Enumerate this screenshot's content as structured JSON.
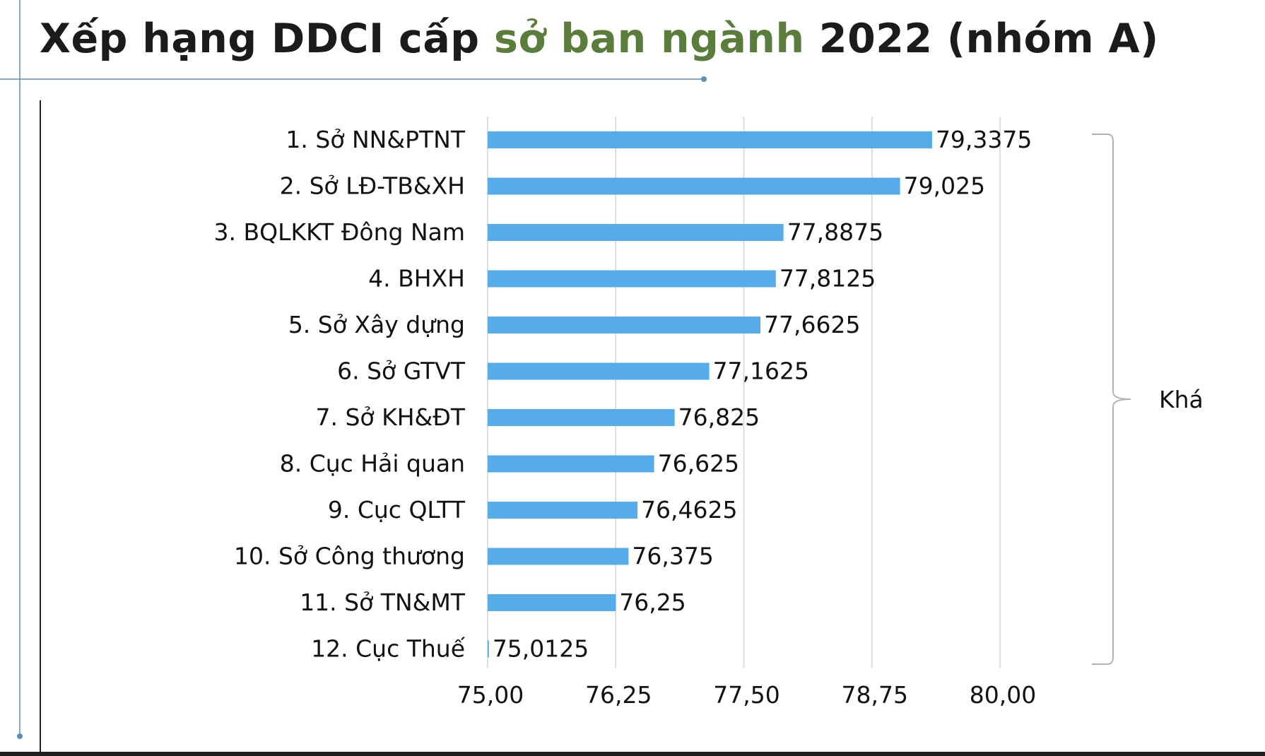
{
  "header": {
    "title_part1": "Xếp hạng DDCI cấp ",
    "title_highlight": "sở ban ngành",
    "title_part2": " 2022 (nhóm A)"
  },
  "colors": {
    "bar": "#55ace8",
    "title_highlight": "#5b7d3c",
    "decor_line": "#5b8fbf",
    "grid": "#d4d4d4",
    "bracket": "#b4b4b4"
  },
  "chart_data": {
    "type": "bar",
    "orientation": "horizontal",
    "title": "Xếp hạng DDCI cấp sở ban ngành 2022 (nhóm A)",
    "categories": [
      "1. Sở NN&PTNT",
      "2. Sở LĐ-TB&XH",
      "3. BQLKKT Đông Nam",
      "4. BHXH",
      "5. Sở Xây dựng",
      "6. Sở GTVT",
      "7. Sở KH&ĐT",
      "8. Cục Hải quan",
      "9. Cục QLTT",
      "10. Sở Công thương",
      "11. Sở TN&MT",
      "12. Cục Thuế"
    ],
    "values": [
      79.3375,
      79.025,
      77.8875,
      77.8125,
      77.6625,
      77.1625,
      76.825,
      76.625,
      76.4625,
      76.375,
      76.25,
      75.0125
    ],
    "value_labels": [
      "79,3375",
      "79,025",
      "77,8875",
      "77,8125",
      "77,6625",
      "77,1625",
      "76,825",
      "76,625",
      "76,4625",
      "76,375",
      "76,25",
      "75,0125"
    ],
    "xlim": [
      75.0,
      80.0
    ],
    "xticks": [
      75.0,
      76.25,
      77.5,
      78.75,
      80.0
    ],
    "xtick_labels": [
      "75,00",
      "76,25",
      "77,50",
      "78,75",
      "80,00"
    ],
    "xlabel": "",
    "ylabel": "",
    "grid": true,
    "group_label": "Khá"
  }
}
